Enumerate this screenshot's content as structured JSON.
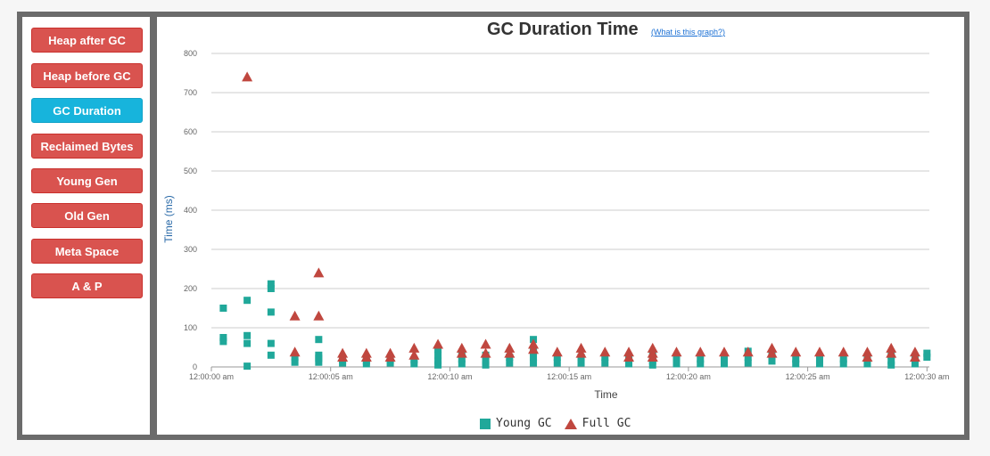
{
  "sidebar": {
    "items": [
      {
        "label": "Heap after GC",
        "active": false
      },
      {
        "label": "Heap before GC",
        "active": false
      },
      {
        "label": "GC Duration",
        "active": true
      },
      {
        "label": "Reclaimed Bytes",
        "active": false
      },
      {
        "label": "Young Gen",
        "active": false
      },
      {
        "label": "Old Gen",
        "active": false
      },
      {
        "label": "Meta Space",
        "active": false
      },
      {
        "label": "A & P",
        "active": false
      }
    ]
  },
  "colors": {
    "button": "#d9534f",
    "button_active": "#17b4dc",
    "young_gc": "#20a89a",
    "full_gc": "#c0473f",
    "axis_title": "#2a6aa8"
  },
  "chart_data": {
    "type": "scatter",
    "title": "GC Duration Time",
    "help_link": "(What is this graph?)",
    "xlabel": "Time",
    "ylabel": "Time (ms)",
    "xlim": [
      0,
      30.1
    ],
    "ylim": [
      0,
      800
    ],
    "yticks": [
      0,
      100,
      200,
      300,
      400,
      500,
      600,
      700,
      800
    ],
    "xticks": [
      {
        "value": 0,
        "label": "12:00:00 am"
      },
      {
        "value": 5,
        "label": "12:00:05 am"
      },
      {
        "value": 10,
        "label": "12:00:10 am"
      },
      {
        "value": 15,
        "label": "12:00:15 am"
      },
      {
        "value": 20,
        "label": "12:00:20 am"
      },
      {
        "value": 25,
        "label": "12:00:25 am"
      },
      {
        "value": 30,
        "label": "12:00:30 am"
      }
    ],
    "grid": true,
    "legend_position": "bottom",
    "series": [
      {
        "name": "Young GC",
        "marker": "square",
        "points": [
          [
            0.5,
            150
          ],
          [
            0.5,
            75
          ],
          [
            0.5,
            65
          ],
          [
            1.5,
            170
          ],
          [
            1.5,
            80
          ],
          [
            1.5,
            60
          ],
          [
            1.5,
            2
          ],
          [
            2.5,
            212
          ],
          [
            2.5,
            200
          ],
          [
            2.5,
            140
          ],
          [
            2.5,
            60
          ],
          [
            2.5,
            30
          ],
          [
            3.5,
            25
          ],
          [
            3.5,
            12
          ],
          [
            4.5,
            70
          ],
          [
            4.5,
            30
          ],
          [
            4.5,
            22
          ],
          [
            4.5,
            12
          ],
          [
            5.5,
            18
          ],
          [
            5.5,
            10
          ],
          [
            6.5,
            15
          ],
          [
            6.5,
            8
          ],
          [
            7.5,
            18
          ],
          [
            7.5,
            10
          ],
          [
            8.5,
            18
          ],
          [
            8.5,
            8
          ],
          [
            9.5,
            45
          ],
          [
            9.5,
            30
          ],
          [
            9.5,
            15
          ],
          [
            9.5,
            5
          ],
          [
            10.5,
            35
          ],
          [
            10.5,
            20
          ],
          [
            10.5,
            8
          ],
          [
            11.5,
            30
          ],
          [
            11.5,
            15
          ],
          [
            11.5,
            5
          ],
          [
            12.5,
            25
          ],
          [
            12.5,
            10
          ],
          [
            13.5,
            70
          ],
          [
            13.5,
            40
          ],
          [
            13.5,
            25
          ],
          [
            13.5,
            10
          ],
          [
            14.5,
            25
          ],
          [
            14.5,
            10
          ],
          [
            15.5,
            25
          ],
          [
            15.5,
            10
          ],
          [
            16.5,
            25
          ],
          [
            16.5,
            10
          ],
          [
            17.5,
            20
          ],
          [
            17.5,
            8
          ],
          [
            18.5,
            30
          ],
          [
            18.5,
            15
          ],
          [
            18.5,
            5
          ],
          [
            19.5,
            20
          ],
          [
            19.5,
            8
          ],
          [
            20.5,
            20
          ],
          [
            20.5,
            8
          ],
          [
            21.5,
            20
          ],
          [
            21.5,
            8
          ],
          [
            22.5,
            40
          ],
          [
            22.5,
            25
          ],
          [
            22.5,
            10
          ],
          [
            23.5,
            30
          ],
          [
            23.5,
            15
          ],
          [
            24.5,
            20
          ],
          [
            24.5,
            8
          ],
          [
            25.5,
            20
          ],
          [
            25.5,
            8
          ],
          [
            26.5,
            20
          ],
          [
            26.5,
            8
          ],
          [
            27.5,
            20
          ],
          [
            27.5,
            8
          ],
          [
            28.5,
            30
          ],
          [
            28.5,
            15
          ],
          [
            28.5,
            5
          ],
          [
            29.5,
            20
          ],
          [
            29.5,
            8
          ],
          [
            30.0,
            35
          ],
          [
            30.0,
            25
          ]
        ]
      },
      {
        "name": "Full GC",
        "marker": "triangle",
        "points": [
          [
            1.5,
            740
          ],
          [
            3.5,
            130
          ],
          [
            3.5,
            38
          ],
          [
            4.5,
            240
          ],
          [
            4.5,
            130
          ],
          [
            5.5,
            35
          ],
          [
            5.5,
            25
          ],
          [
            6.5,
            35
          ],
          [
            6.5,
            25
          ],
          [
            7.5,
            35
          ],
          [
            7.5,
            25
          ],
          [
            8.5,
            48
          ],
          [
            8.5,
            30
          ],
          [
            9.5,
            58
          ],
          [
            10.5,
            48
          ],
          [
            10.5,
            35
          ],
          [
            11.5,
            58
          ],
          [
            11.5,
            35
          ],
          [
            12.5,
            48
          ],
          [
            12.5,
            35
          ],
          [
            13.5,
            58
          ],
          [
            13.5,
            45
          ],
          [
            14.5,
            38
          ],
          [
            15.5,
            48
          ],
          [
            15.5,
            35
          ],
          [
            16.5,
            38
          ],
          [
            17.5,
            38
          ],
          [
            17.5,
            25
          ],
          [
            18.5,
            48
          ],
          [
            18.5,
            35
          ],
          [
            18.5,
            25
          ],
          [
            19.5,
            38
          ],
          [
            20.5,
            38
          ],
          [
            21.5,
            38
          ],
          [
            22.5,
            38
          ],
          [
            23.5,
            48
          ],
          [
            23.5,
            35
          ],
          [
            24.5,
            38
          ],
          [
            25.5,
            38
          ],
          [
            26.5,
            38
          ],
          [
            27.5,
            38
          ],
          [
            27.5,
            25
          ],
          [
            28.5,
            48
          ],
          [
            28.5,
            35
          ],
          [
            29.5,
            38
          ],
          [
            29.5,
            25
          ]
        ]
      }
    ]
  }
}
